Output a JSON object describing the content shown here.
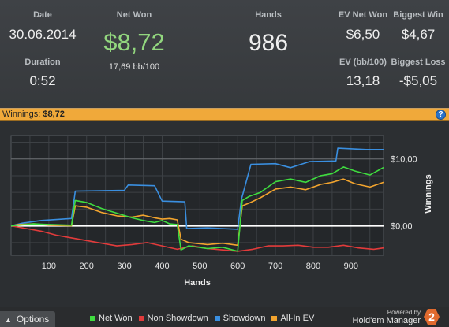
{
  "stats": {
    "date": {
      "label": "Date",
      "value": "30.06.2014"
    },
    "duration": {
      "label": "Duration",
      "value": "0:52"
    },
    "net_won": {
      "label": "Net Won",
      "value": "$8,72",
      "sub": "17,69 bb/100"
    },
    "hands": {
      "label": "Hands",
      "value": "986"
    },
    "ev_net_won": {
      "label": "EV Net Won",
      "value": "$6,50"
    },
    "biggest_win": {
      "label": "Biggest Win",
      "value": "$4,67"
    },
    "ev_bb100": {
      "label": "EV (bb/100)",
      "value": "13,18"
    },
    "biggest_loss": {
      "label": "Biggest Loss",
      "value": "-$5,05"
    }
  },
  "winnings_bar": {
    "label": "Winnings:",
    "value": "$8,72",
    "help_icon": "?"
  },
  "chart_data": {
    "type": "line",
    "xlabel": "Hands",
    "ylabel": "Winnings",
    "xlim": [
      0,
      986
    ],
    "ylim": [
      -4.4,
      13.5
    ],
    "x_ticks": [
      100,
      200,
      300,
      400,
      500,
      600,
      700,
      800,
      900
    ],
    "y_tick_labels": [
      {
        "value": 10,
        "label": "$10,00"
      },
      {
        "value": 0,
        "label": "$0,00"
      }
    ],
    "grid": true,
    "series": [
      {
        "name": "Net Won",
        "color": "#3fdc3f",
        "x": [
          0,
          20,
          60,
          100,
          160,
          170,
          200,
          240,
          280,
          320,
          350,
          380,
          400,
          420,
          440,
          450,
          470,
          520,
          560,
          600,
          612,
          630,
          660,
          700,
          740,
          780,
          820,
          850,
          880,
          910,
          950,
          986
        ],
        "y": [
          0,
          0.1,
          0.3,
          0.2,
          0.1,
          3.8,
          3.5,
          2.6,
          1.9,
          1.2,
          0.8,
          0.5,
          0.8,
          0.3,
          0.2,
          -3.6,
          -3.0,
          -3.4,
          -3.2,
          -3.8,
          3.8,
          4.4,
          5.0,
          6.6,
          7.0,
          6.5,
          7.5,
          7.8,
          8.8,
          8.2,
          7.6,
          8.72
        ]
      },
      {
        "name": "Non Showdown",
        "color": "#e23b3b",
        "x": [
          0,
          40,
          80,
          120,
          160,
          200,
          240,
          280,
          320,
          360,
          400,
          440,
          480,
          520,
          560,
          600,
          640,
          680,
          720,
          760,
          800,
          840,
          880,
          920,
          960,
          986
        ],
        "y": [
          0,
          -0.4,
          -0.8,
          -1.4,
          -1.8,
          -2.2,
          -2.6,
          -3.0,
          -2.8,
          -2.5,
          -3.0,
          -3.5,
          -3.0,
          -3.4,
          -3.6,
          -3.8,
          -3.5,
          -3.0,
          -3.0,
          -2.9,
          -3.2,
          -3.2,
          -2.9,
          -3.3,
          -3.5,
          -3.3
        ]
      },
      {
        "name": "Showdown",
        "color": "#3a8fe0",
        "x": [
          0,
          30,
          80,
          160,
          170,
          300,
          310,
          380,
          400,
          460,
          465,
          520,
          600,
          610,
          635,
          700,
          740,
          790,
          860,
          865,
          940,
          986
        ],
        "y": [
          0,
          0.4,
          0.8,
          1.1,
          5.2,
          5.3,
          6.1,
          6.0,
          3.7,
          3.6,
          -0.4,
          -0.3,
          -0.5,
          4.0,
          9.2,
          9.3,
          8.7,
          9.6,
          9.7,
          11.6,
          11.4,
          11.4
        ]
      },
      {
        "name": "All-In EV",
        "color": "#f2a42e",
        "x": [
          0,
          20,
          60,
          100,
          160,
          170,
          200,
          240,
          280,
          320,
          350,
          380,
          400,
          420,
          440,
          450,
          470,
          520,
          560,
          600,
          612,
          630,
          660,
          700,
          740,
          780,
          820,
          850,
          880,
          910,
          950,
          986
        ],
        "y": [
          0,
          0.2,
          0.3,
          0.1,
          0.0,
          3.0,
          2.8,
          2.0,
          1.5,
          1.3,
          1.6,
          1.2,
          1.0,
          1.1,
          0.9,
          -2.0,
          -2.5,
          -2.8,
          -2.6,
          -2.9,
          3.0,
          3.4,
          4.2,
          5.5,
          5.8,
          5.4,
          6.2,
          6.5,
          7.0,
          6.3,
          5.8,
          6.5
        ]
      }
    ]
  },
  "footer": {
    "options_label": "Options",
    "options_arrow": "▲",
    "legend": [
      {
        "name": "Net Won",
        "color": "#3fdc3f"
      },
      {
        "name": "Non Showdown",
        "color": "#e23b3b"
      },
      {
        "name": "Showdown",
        "color": "#3a8fe0"
      },
      {
        "name": "All-In EV",
        "color": "#f2a42e"
      }
    ],
    "powered_by": "Powered by",
    "brand": "Hold'em Manager",
    "brand_logo": "2"
  }
}
